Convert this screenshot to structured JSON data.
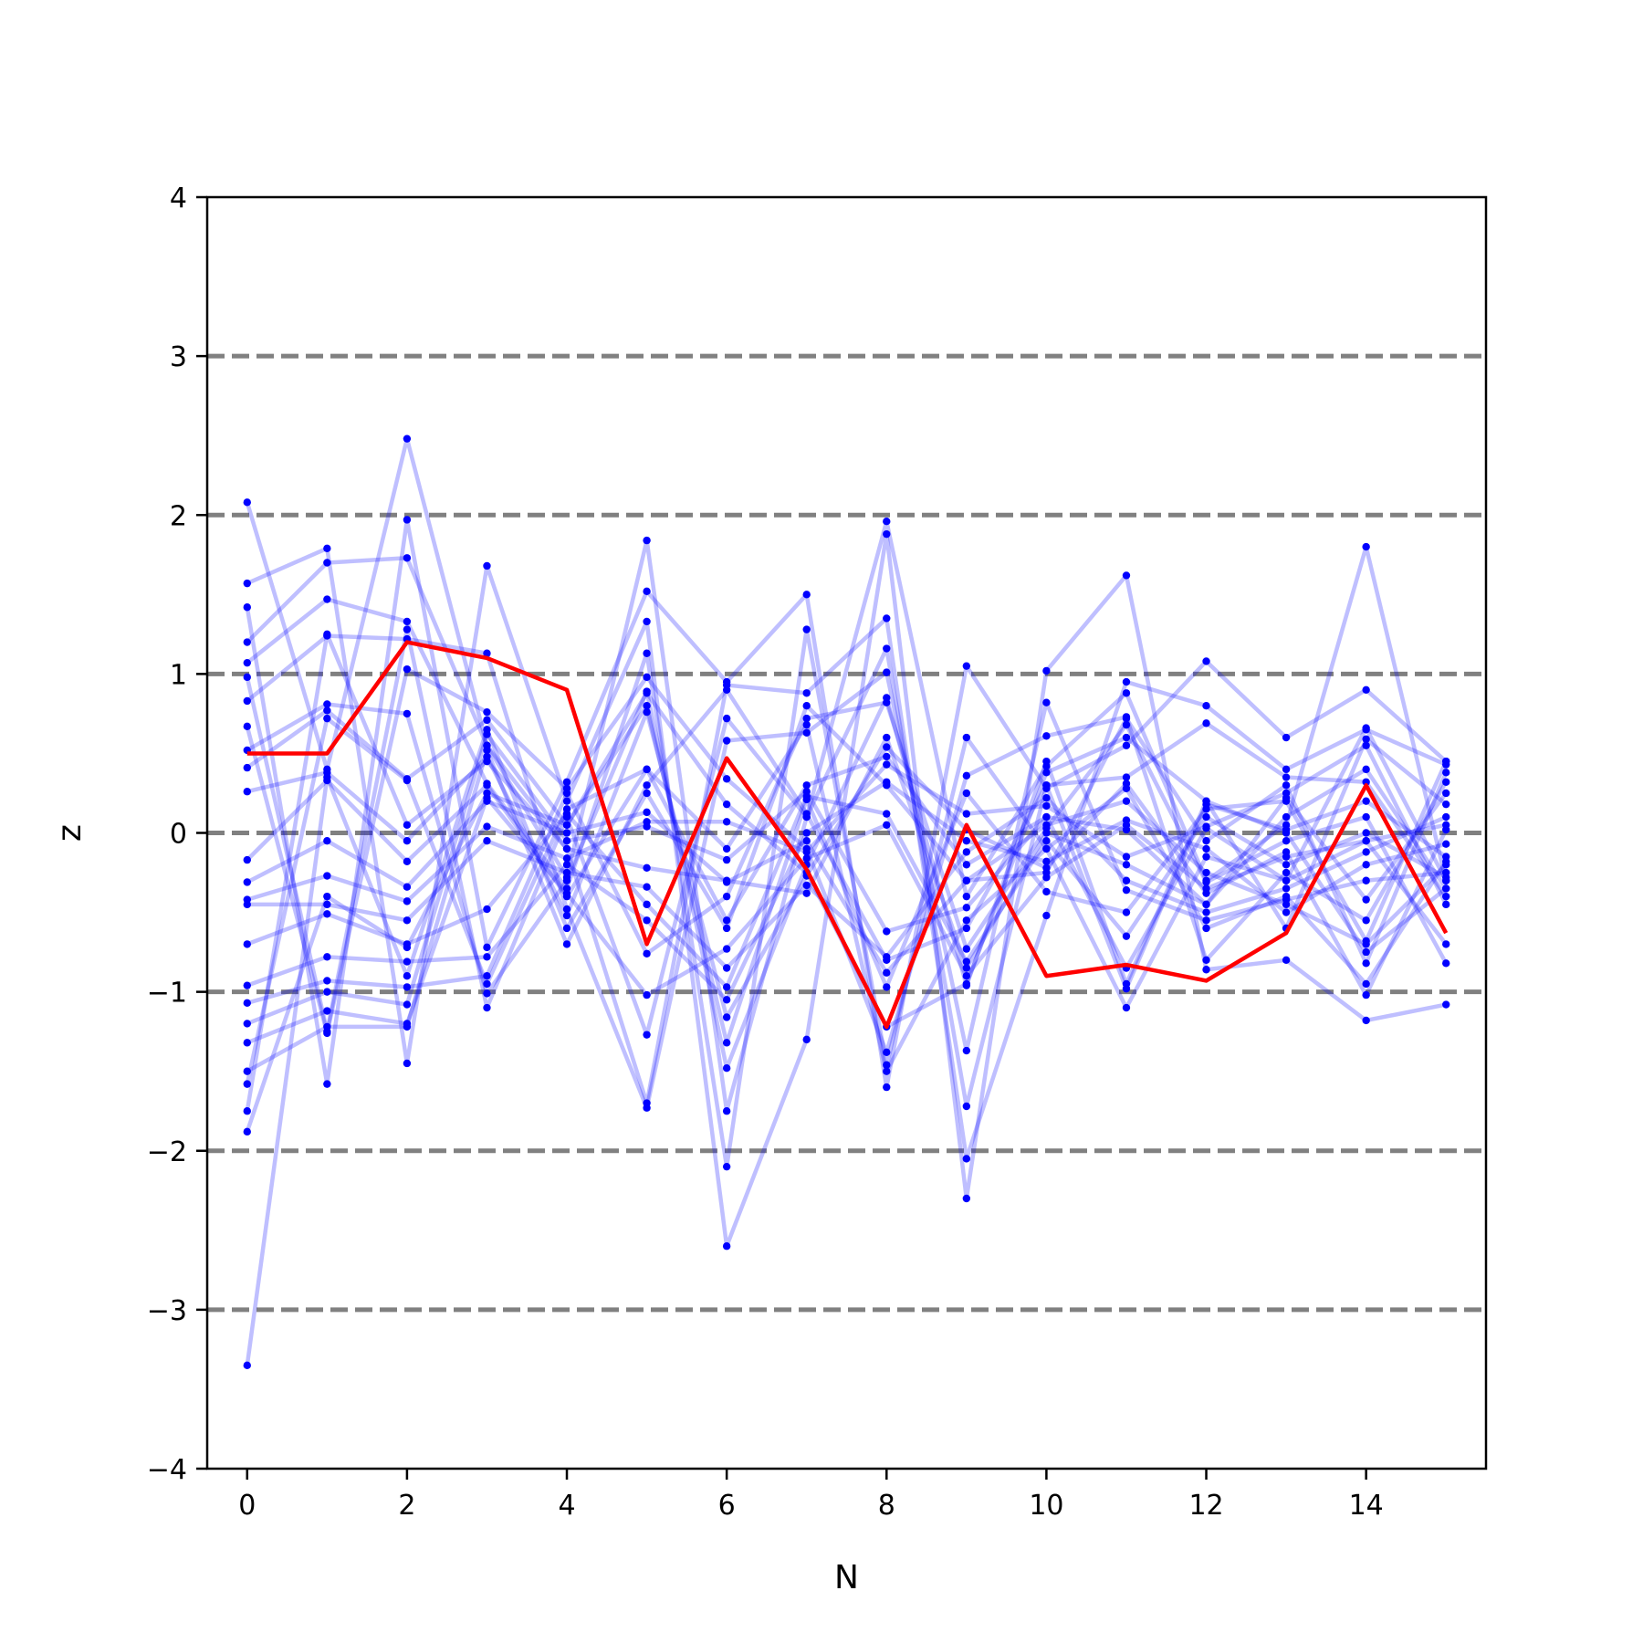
{
  "chart_data": {
    "type": "line",
    "xlabel": "N",
    "ylabel": "z",
    "xlim": [
      -0.5,
      15.5
    ],
    "ylim": [
      -4,
      4
    ],
    "x_ticks": [
      0,
      2,
      4,
      6,
      8,
      10,
      12,
      14
    ],
    "y_ticks": [
      -4,
      -3,
      -2,
      -1,
      0,
      1,
      2,
      3,
      4
    ],
    "x_tick_labels": [
      "0",
      "2",
      "4",
      "6",
      "8",
      "10",
      "12",
      "14"
    ],
    "y_tick_labels": [
      "−4",
      "−3",
      "−2",
      "−1",
      "0",
      "1",
      "2",
      "3",
      "4"
    ],
    "reference_lines_y": [
      -3,
      -2,
      -1,
      0,
      1,
      2,
      3
    ],
    "reference_line_style": "dashed",
    "grid": false,
    "legend": "none",
    "x": [
      0,
      1,
      2,
      3,
      4,
      5,
      6,
      7,
      8,
      9,
      10,
      11,
      12,
      13,
      14,
      15
    ],
    "background_series": [
      {
        "values": [
          2.08,
          0.4,
          2.48,
          0.55,
          -0.28,
          1.84,
          -1.75,
          0.1,
          1.96,
          -0.4,
          0.42,
          0.88,
          -0.3,
          0.05,
          1.8,
          -0.3
        ]
      },
      {
        "values": [
          1.57,
          1.79,
          -1.45,
          1.68,
          0.2,
          1.33,
          -2.6,
          -1.3,
          1.88,
          -2.3,
          1.02,
          1.62,
          -0.86,
          -0.8,
          -1.18,
          -1.08
        ]
      },
      {
        "values": [
          1.42,
          -1.58,
          1.97,
          -0.72,
          0.32,
          1.52,
          0.95,
          1.5,
          -1.6,
          1.05,
          0.28,
          0.55,
          1.08,
          0.6,
          0.9,
          0.45
        ]
      },
      {
        "values": [
          1.2,
          1.7,
          1.73,
          0.55,
          -0.1,
          -1.7,
          0.93,
          0.88,
          1.35,
          -2.05,
          -0.52,
          0.95,
          0.8,
          0.4,
          0.65,
          0.43
        ]
      },
      {
        "values": [
          1.07,
          1.47,
          1.33,
          0.31,
          -0.35,
          1.13,
          -2.1,
          1.28,
          -1.46,
          0.6,
          -0.1,
          -1.1,
          -0.15,
          -0.3,
          -0.05,
          -0.7
        ]
      },
      {
        "values": [
          0.98,
          -1.25,
          1.28,
          -1.1,
          0.1,
          -1.27,
          0.72,
          0.1,
          1.16,
          -1.72,
          0.3,
          0.35,
          0.69,
          0.35,
          0.32,
          -0.4
        ]
      },
      {
        "values": [
          0.83,
          1.24,
          1.22,
          1.13,
          -0.48,
          -1.73,
          0.58,
          0.63,
          1.01,
          -1.37,
          0.82,
          -0.36,
          -0.55,
          -0.42,
          -0.3,
          -0.25
        ]
      },
      {
        "values": [
          0.67,
          -1.26,
          1.03,
          0.76,
          0.28,
          0.98,
          0.34,
          -0.1,
          -1.38,
          0.36,
          0.61,
          0.73,
          -0.8,
          -0.25,
          -0.55,
          0.32
        ]
      },
      {
        "values": [
          0.52,
          0.81,
          0.75,
          -1.01,
          -0.3,
          0.89,
          -1.48,
          -0.2,
          0.85,
          -0.96,
          0.45,
          -0.95,
          0.2,
          -0.6,
          0.59,
          0.18
        ]
      },
      {
        "values": [
          0.41,
          0.77,
          0.34,
          0.71,
          0.05,
          0.8,
          -1.32,
          0.21,
          -0.97,
          0.25,
          -0.37,
          -0.5,
          0.15,
          0.2,
          -0.68,
          0.45
        ]
      },
      {
        "values": [
          0.26,
          0.38,
          -0.05,
          0.48,
          -0.52,
          0.76,
          -1.16,
          -0.27,
          0.54,
          0.02,
          -0.22,
          0.31,
          -0.38,
          -0.12,
          -1.02,
          0.02
        ]
      },
      {
        "values": [
          -0.17,
          0.33,
          -0.18,
          0.3,
          -0.4,
          0.4,
          -0.55,
          0.3,
          0.48,
          -0.2,
          0.1,
          0.02,
          -0.45,
          0.1,
          0.4,
          -0.35
        ]
      },
      {
        "values": [
          -0.31,
          -0.05,
          -0.34,
          0.2,
          0.0,
          0.13,
          -0.31,
          -0.05,
          -0.88,
          -0.3,
          0.05,
          0.2,
          -0.25,
          -0.45,
          -0.7,
          -0.2
        ]
      },
      {
        "values": [
          -0.42,
          -0.27,
          -0.43,
          0.04,
          -0.16,
          0.07,
          0.07,
          -0.12,
          0.43,
          0.12,
          0.17,
          -0.15,
          0.04,
          0.25,
          0.55,
          -0.45
        ]
      },
      {
        "values": [
          -0.45,
          -0.45,
          -0.55,
          -0.05,
          -0.25,
          -0.34,
          -0.85,
          -0.33,
          -0.78,
          -0.12,
          0.22,
          -0.3,
          -0.5,
          -0.35,
          -0.12,
          0.1
        ]
      },
      {
        "values": [
          -0.7,
          -0.51,
          -0.7,
          -0.48,
          0.12,
          -0.45,
          -0.97,
          0.23,
          0.12,
          -0.81,
          -0.05,
          -0.65,
          0.1,
          -0.2,
          0.0,
          -0.28
        ]
      },
      {
        "values": [
          -0.96,
          -0.78,
          -0.81,
          -0.78,
          -0.2,
          -0.55,
          -1.05,
          0.0,
          0.32,
          -0.05,
          -0.18,
          0.08,
          -0.1,
          -0.5,
          -0.2,
          -0.07
        ]
      },
      {
        "values": [
          -1.07,
          -0.93,
          -0.97,
          -0.9,
          0.25,
          -0.76,
          -0.4,
          0.72,
          0.82,
          -0.73,
          0.03,
          0.68,
          -0.31,
          -0.05,
          0.1,
          -0.82
        ]
      },
      {
        "values": [
          -1.2,
          -1.0,
          -1.08,
          0.62,
          -0.05,
          0.04,
          -0.17,
          0.26,
          -0.62,
          -0.47,
          0.1,
          -0.85,
          0.03,
          -0.3,
          0.66,
          -0.3
        ]
      },
      {
        "values": [
          -1.32,
          -1.12,
          -1.2,
          0.22,
          -0.38,
          -1.02,
          -0.73,
          -0.16,
          0.05,
          -0.9,
          -0.28,
          0.05,
          -0.35,
          -0.15,
          -0.05,
          0.05
        ]
      },
      {
        "values": [
          -1.5,
          -1.22,
          -1.22,
          0.52,
          -0.7,
          0.3,
          0.9,
          0.12,
          -0.8,
          -0.6,
          0.3,
          -0.98,
          0.18,
          0.02,
          0.2,
          -0.15
        ]
      },
      {
        "values": [
          -1.58,
          0.72,
          0.33,
          -0.95,
          0.15,
          0.4,
          -0.1,
          0.68,
          -1.5,
          -0.55,
          -0.1,
          0.28,
          -0.6,
          -0.4,
          -0.95,
          -0.18
        ]
      },
      {
        "values": [
          -1.75,
          1.25,
          0.05,
          0.45,
          -0.1,
          -0.22,
          -0.3,
          -0.38,
          0.6,
          -0.85,
          0.0,
          -0.2,
          -0.45,
          0.22,
          -0.42,
          0.25
        ]
      },
      {
        "values": [
          -1.88,
          -0.4,
          -0.72,
          0.25,
          0.05,
          0.88,
          0.18,
          -0.25,
          -1.22,
          -0.95,
          0.38,
          0.6,
          0.2,
          0.0,
          -0.75,
          -0.35
        ]
      },
      {
        "values": [
          -3.35,
          0.35,
          -0.9,
          0.65,
          -0.6,
          0.25,
          -0.6,
          0.8,
          0.3,
          -0.3,
          -0.25,
          0.72,
          -0.05,
          0.3,
          -0.82,
          0.38
        ]
      }
    ],
    "highlight_series": {
      "values": [
        0.5,
        0.5,
        1.2,
        1.1,
        0.9,
        -0.7,
        0.47,
        -0.23,
        -1.22,
        0.05,
        -0.9,
        -0.83,
        -0.93,
        -0.63,
        0.3,
        -0.63
      ]
    },
    "colors": {
      "background_lines": "#0000ff",
      "highlight_line": "#ff0000",
      "reference_lines": "#808080",
      "axes": "#000000"
    }
  }
}
